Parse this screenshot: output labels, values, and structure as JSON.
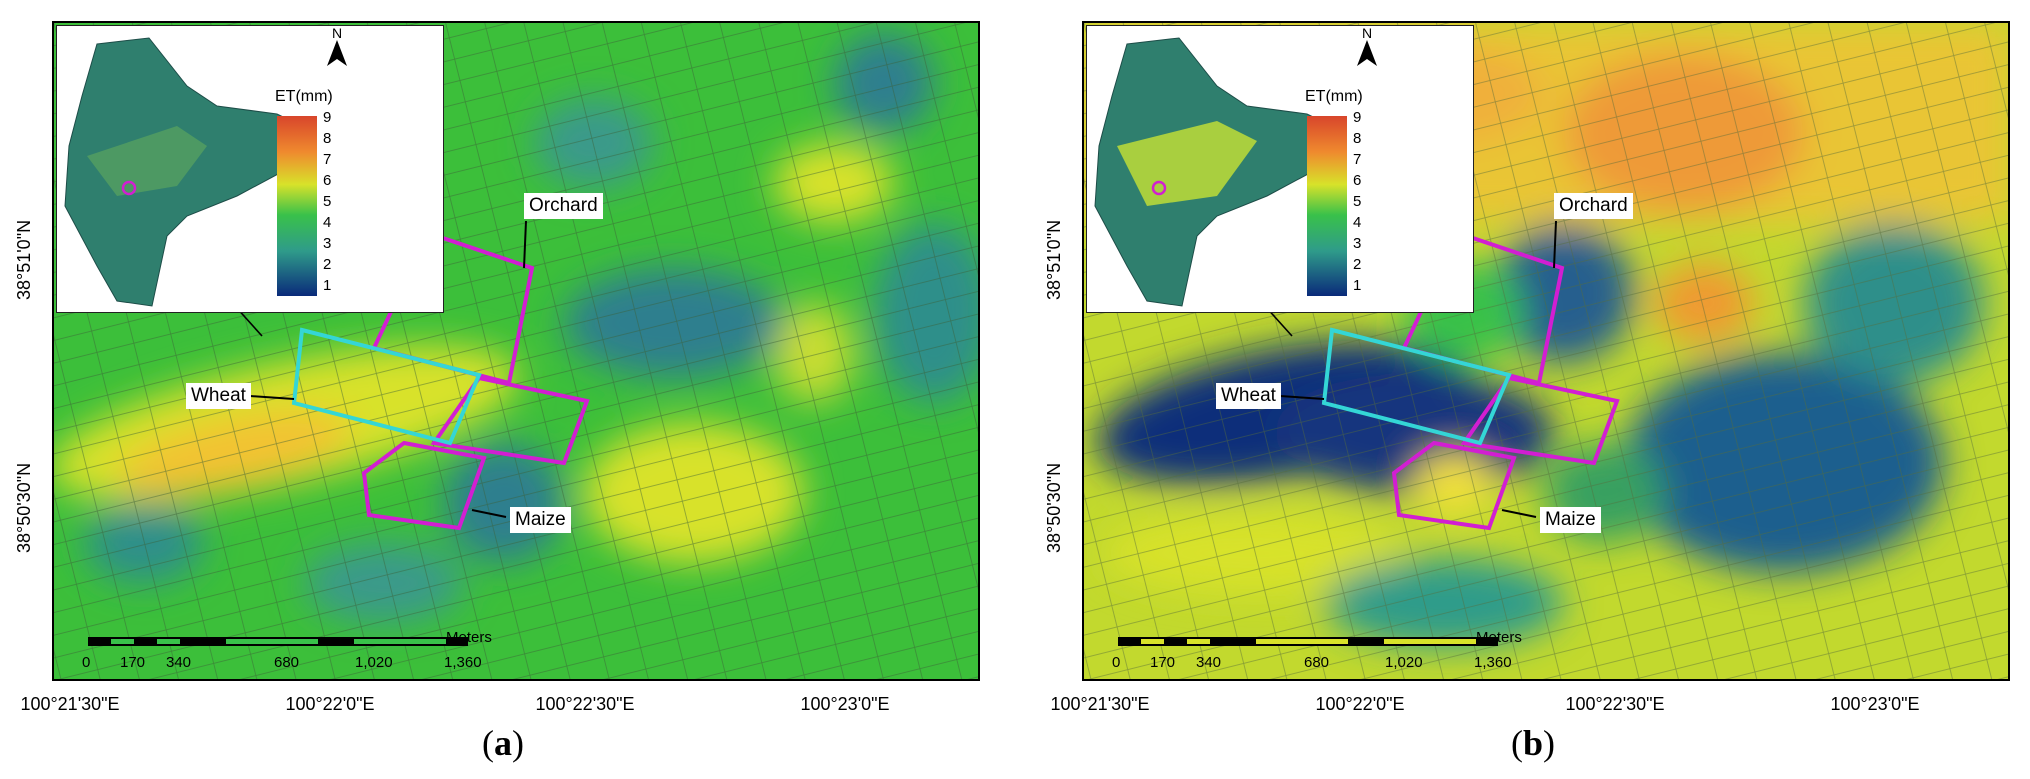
{
  "panels": [
    {
      "id": "a",
      "caption_letter": "a",
      "caption_open": "(",
      "caption_close": ")",
      "scheme": "wet",
      "labels": {
        "orchard": "Orchard",
        "wheat": "Wheat",
        "maize": "Maize"
      },
      "legend": {
        "title": "ET(mm)",
        "ticks": [
          "9",
          "8",
          "7",
          "6",
          "5",
          "4",
          "3",
          "2",
          "1"
        ],
        "north": "N"
      },
      "scale": {
        "unit": "Meters",
        "ticks": [
          "0",
          "170",
          "340",
          "680",
          "1,020",
          "1,360"
        ]
      },
      "lon_ticks": [
        "100°21'30\"E",
        "100°22'0\"E",
        "100°22'30\"E",
        "100°23'0\"E"
      ],
      "lat_ticks": [
        "38°51'0\"N",
        "38°50'30\"N"
      ]
    },
    {
      "id": "b",
      "caption_letter": "b",
      "caption_open": "(",
      "caption_close": ")",
      "scheme": "dry",
      "labels": {
        "orchard": "Orchard",
        "wheat": "Wheat",
        "maize": "Maize"
      },
      "legend": {
        "title": "ET(mm)",
        "ticks": [
          "9",
          "8",
          "7",
          "6",
          "5",
          "4",
          "3",
          "2",
          "1"
        ],
        "north": "N"
      },
      "scale": {
        "unit": "Meters",
        "ticks": [
          "0",
          "170",
          "340",
          "680",
          "1,020",
          "1,360"
        ]
      },
      "lon_ticks": [
        "100°21'30\"E",
        "100°22'0\"E",
        "100°22'30\"E",
        "100°23'0\"E"
      ],
      "lat_ticks": [
        "38°51'0\"N",
        "38°50'30\"N"
      ]
    }
  ],
  "colors": {
    "orchard_outline": "#d21ed2",
    "maize_outline": "#d21ed2",
    "wheat_outline": "#34d6d6",
    "frame": "#000000",
    "ramp": [
      "#0a2a7a",
      "#1c5f8e",
      "#2f9b8a",
      "#39c14a",
      "#7bd42a",
      "#d8e22a",
      "#f3c232",
      "#ef8a2e",
      "#d8452b"
    ]
  }
}
